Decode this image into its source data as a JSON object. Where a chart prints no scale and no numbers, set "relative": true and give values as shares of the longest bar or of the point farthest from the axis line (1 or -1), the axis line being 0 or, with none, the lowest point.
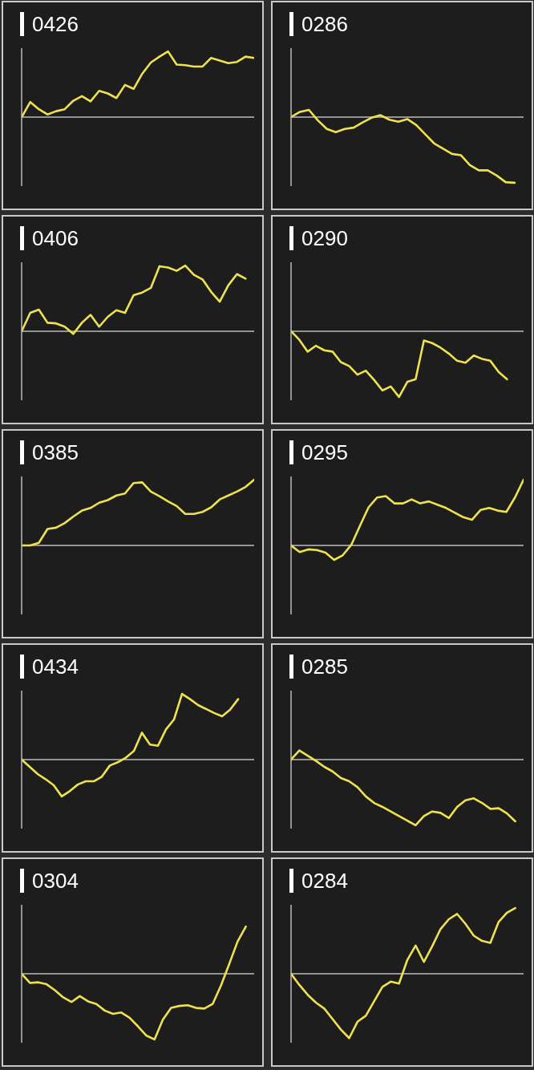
{
  "chart_data": [
    {
      "type": "line",
      "title": "0426",
      "relative": true,
      "color": "#efe24f",
      "categories": [
        null,
        null,
        null,
        null,
        null,
        null,
        null,
        null,
        null,
        null,
        null,
        null,
        null,
        null,
        null,
        null,
        null,
        null,
        null,
        null,
        null,
        null,
        null,
        null,
        null,
        null,
        null,
        null
      ],
      "values": [
        0,
        0.23,
        0.12,
        0.04,
        0.09,
        0.12,
        0.25,
        0.32,
        0.24,
        0.4,
        0.36,
        0.29,
        0.49,
        0.43,
        0.66,
        0.83,
        0.92,
        1,
        0.8,
        0.79,
        0.77,
        0.77,
        0.9,
        0.86,
        0.82,
        0.84,
        0.92,
        0.9
      ]
    },
    {
      "type": "line",
      "title": "0286",
      "relative": true,
      "color": "#efe24f",
      "categories": [
        null,
        null,
        null,
        null,
        null,
        null,
        null,
        null,
        null,
        null,
        null,
        null,
        null,
        null,
        null,
        null,
        null,
        null,
        null,
        null,
        null,
        null,
        null,
        null,
        null,
        null,
        null
      ],
      "values": [
        0,
        0.08,
        0.11,
        -0.05,
        -0.18,
        -0.23,
        -0.18,
        -0.16,
        -0.08,
        -0.01,
        0.03,
        -0.04,
        -0.07,
        -0.03,
        -0.12,
        -0.26,
        -0.4,
        -0.48,
        -0.56,
        -0.58,
        -0.73,
        -0.81,
        -0.81,
        -0.89,
        -0.99,
        -1,
        null
      ]
    },
    {
      "type": "line",
      "title": "0406",
      "relative": true,
      "color": "#efe24f",
      "categories": [
        null,
        null,
        null,
        null,
        null,
        null,
        null,
        null,
        null,
        null,
        null,
        null,
        null,
        null,
        null,
        null,
        null,
        null,
        null,
        null,
        null,
        null,
        null,
        null,
        null,
        null,
        null,
        null
      ],
      "values": [
        0,
        0.28,
        0.33,
        0.13,
        0.12,
        0.07,
        -0.04,
        0.13,
        0.25,
        0.07,
        0.22,
        0.32,
        0.28,
        0.55,
        0.59,
        0.66,
        0.99,
        0.97,
        0.92,
        1,
        0.86,
        0.79,
        0.6,
        0.45,
        0.7,
        0.87,
        0.8,
        null
      ]
    },
    {
      "type": "line",
      "title": "0290",
      "relative": true,
      "color": "#efe24f",
      "categories": [
        null,
        null,
        null,
        null,
        null,
        null,
        null,
        null,
        null,
        null,
        null,
        null,
        null,
        null,
        null,
        null,
        null,
        null,
        null,
        null,
        null,
        null,
        null,
        null,
        null,
        null,
        null,
        null,
        null
      ],
      "values": [
        0,
        -0.13,
        -0.31,
        -0.22,
        -0.29,
        -0.31,
        -0.47,
        -0.53,
        -0.66,
        -0.6,
        -0.74,
        -0.9,
        -0.84,
        -1,
        -0.77,
        -0.73,
        -0.14,
        -0.18,
        -0.25,
        -0.34,
        -0.45,
        -0.48,
        -0.37,
        -0.42,
        -0.45,
        -0.62,
        -0.73,
        null,
        null
      ]
    },
    {
      "type": "line",
      "title": "0385",
      "relative": true,
      "color": "#efe24f",
      "categories": [
        null,
        null,
        null,
        null,
        null,
        null,
        null,
        null,
        null,
        null,
        null,
        null,
        null,
        null,
        null,
        null,
        null,
        null,
        null,
        null,
        null,
        null,
        null,
        null,
        null,
        null,
        null,
        null
      ],
      "values": [
        0,
        0,
        0.04,
        0.25,
        0.27,
        0.34,
        0.44,
        0.53,
        0.57,
        0.65,
        0.69,
        0.76,
        0.79,
        0.95,
        0.96,
        0.82,
        0.75,
        0.67,
        0.6,
        0.48,
        0.48,
        0.51,
        0.58,
        0.7,
        0.76,
        0.82,
        0.89,
        1
      ]
    },
    {
      "type": "line",
      "title": "0295",
      "relative": true,
      "color": "#efe24f",
      "categories": [
        null,
        null,
        null,
        null,
        null,
        null,
        null,
        null,
        null,
        null,
        null,
        null,
        null,
        null,
        null,
        null,
        null,
        null,
        null,
        null,
        null,
        null,
        null,
        null,
        null,
        null,
        null,
        null
      ],
      "values": [
        0,
        -0.1,
        -0.06,
        -0.07,
        -0.11,
        -0.22,
        -0.15,
        0.01,
        0.3,
        0.58,
        0.73,
        0.75,
        0.64,
        0.64,
        0.7,
        0.64,
        0.67,
        0.62,
        0.57,
        0.5,
        0.43,
        0.39,
        0.54,
        0.57,
        0.53,
        0.51,
        0.73,
        1
      ]
    },
    {
      "type": "line",
      "title": "0434",
      "relative": true,
      "color": "#efe24f",
      "categories": [
        null,
        null,
        null,
        null,
        null,
        null,
        null,
        null,
        null,
        null,
        null,
        null,
        null,
        null,
        null,
        null,
        null,
        null,
        null,
        null,
        null,
        null,
        null,
        null,
        null,
        null,
        null,
        null,
        null,
        null
      ],
      "values": [
        0,
        -0.11,
        -0.22,
        -0.3,
        -0.39,
        -0.56,
        -0.48,
        -0.38,
        -0.33,
        -0.33,
        -0.26,
        -0.09,
        -0.04,
        0.03,
        0.13,
        0.41,
        0.23,
        0.21,
        0.46,
        0.61,
        1,
        0.92,
        0.83,
        0.77,
        0.71,
        0.66,
        0.76,
        0.92,
        null,
        null
      ]
    },
    {
      "type": "line",
      "title": "0285",
      "relative": true,
      "color": "#efe24f",
      "categories": [
        null,
        null,
        null,
        null,
        null,
        null,
        null,
        null,
        null,
        null,
        null,
        null,
        null,
        null,
        null,
        null,
        null,
        null,
        null,
        null,
        null,
        null,
        null,
        null,
        null,
        null,
        null,
        null,
        null
      ],
      "values": [
        0,
        0.14,
        0.06,
        -0.02,
        -0.11,
        -0.18,
        -0.28,
        -0.33,
        -0.42,
        -0.56,
        -0.66,
        -0.72,
        -0.79,
        -0.86,
        -0.93,
        -1,
        -0.86,
        -0.79,
        -0.81,
        -0.89,
        -0.72,
        -0.62,
        -0.59,
        -0.66,
        -0.75,
        -0.74,
        -0.82,
        -0.94,
        null
      ]
    },
    {
      "type": "line",
      "title": "0304",
      "relative": true,
      "color": "#efe24f",
      "categories": [
        null,
        null,
        null,
        null,
        null,
        null,
        null,
        null,
        null,
        null,
        null,
        null,
        null,
        null,
        null,
        null,
        null,
        null,
        null,
        null,
        null,
        null,
        null,
        null,
        null,
        null,
        null,
        null,
        null
      ],
      "values": [
        0,
        -0.14,
        -0.13,
        -0.16,
        -0.25,
        -0.36,
        -0.43,
        -0.34,
        -0.42,
        -0.46,
        -0.56,
        -0.61,
        -0.59,
        -0.67,
        -0.8,
        -0.94,
        -1,
        -0.7,
        -0.52,
        -0.49,
        -0.48,
        -0.52,
        -0.53,
        -0.46,
        -0.18,
        0.15,
        0.49,
        0.72,
        null
      ]
    },
    {
      "type": "line",
      "title": "0284",
      "relative": true,
      "color": "#efe24f",
      "categories": [
        null,
        null,
        null,
        null,
        null,
        null,
        null,
        null,
        null,
        null,
        null,
        null,
        null,
        null,
        null,
        null,
        null,
        null,
        null,
        null,
        null,
        null,
        null,
        null,
        null,
        null,
        null,
        null,
        null
      ],
      "values": [
        0,
        -0.17,
        -0.32,
        -0.44,
        -0.53,
        -0.69,
        -0.85,
        -0.98,
        -0.73,
        -0.64,
        -0.42,
        -0.2,
        -0.12,
        -0.15,
        0.21,
        0.43,
        0.18,
        0.42,
        0.68,
        0.83,
        0.91,
        0.76,
        0.58,
        0.5,
        0.47,
        0.79,
        0.93,
        1,
        null
      ]
    }
  ]
}
